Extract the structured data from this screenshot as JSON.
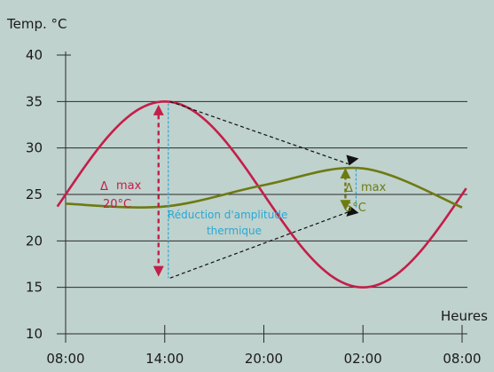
{
  "chart_data": {
    "type": "line",
    "ylabel": "Temp. °C",
    "xlabel": "Heures",
    "ylim": [
      10,
      40
    ],
    "yticks": [
      10,
      15,
      20,
      25,
      30,
      35,
      40
    ],
    "xticks": [
      "08:00",
      "14:00",
      "20:00",
      "02:00",
      "08:00"
    ],
    "grid": "horizontal",
    "series": [
      {
        "color": "#c41e4a",
        "x": [
          0,
          6,
          12,
          18,
          24
        ],
        "y": [
          25,
          35,
          25,
          15,
          25
        ]
      },
      {
        "color": "#6e7a12",
        "x": [
          0,
          6,
          12,
          18,
          24
        ],
        "y": [
          24,
          23.7,
          26,
          27.8,
          23.6
        ]
      }
    ],
    "annotations": {
      "day_delta_symbol": "Δ",
      "day_delta_label": "max",
      "day_delta_value": "20°C",
      "night_delta_symbol": "Δ",
      "night_delta_label": "max",
      "night_delta_value": "5°C",
      "reduction_line1": "Réduction d'amplitude",
      "reduction_line2": "thermique"
    },
    "colors": {
      "background": "#bfd2cd",
      "grid": "#2b2b2b",
      "red": "#c41e4a",
      "olive": "#6e7a12",
      "blue": "#2aa7d6"
    }
  }
}
